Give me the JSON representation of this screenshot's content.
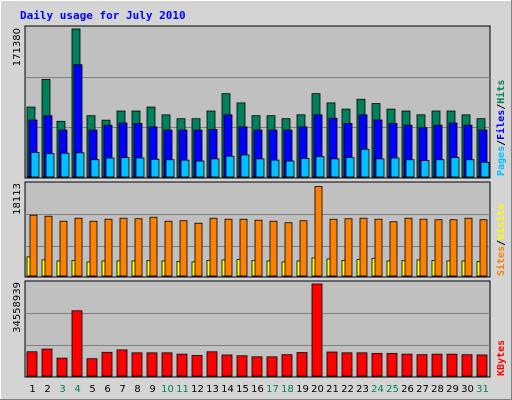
{
  "title": "Daily usage for July 2010",
  "x_labels": [
    "1",
    "2",
    "3",
    "4",
    "5",
    "6",
    "7",
    "8",
    "9",
    "10",
    "11",
    "12",
    "13",
    "14",
    "15",
    "16",
    "17",
    "18",
    "19",
    "20",
    "21",
    "22",
    "23",
    "24",
    "25",
    "26",
    "27",
    "28",
    "29",
    "30",
    "31"
  ],
  "weekend_days": [
    "3",
    "4",
    "10",
    "11",
    "17",
    "18",
    "24",
    "25",
    "31"
  ],
  "colors": {
    "hits": "#00805c",
    "files": "#0000ff",
    "pages": "#00c0ff",
    "visits": "#ffff00",
    "sites": "#ff8000",
    "kbytes": "#ff0000",
    "weekday_label": "#000000",
    "weekend_label": "#00805c",
    "title": "#0000ff",
    "plot_bg": "#c0c0c0",
    "frame_bg": "#d4d4d4"
  },
  "chart_data": [
    {
      "type": "bar",
      "panel": "top",
      "y_max_label": "171380",
      "ylim": [
        0,
        171380
      ],
      "legend": [
        "Pages",
        "/",
        "Files",
        "/",
        "Hits"
      ],
      "series": [
        {
          "name": "Hits",
          "values": [
            81000,
            113000,
            64500,
            171380,
            71000,
            65800,
            76400,
            76400,
            81000,
            72000,
            67500,
            67500,
            76400,
            96500,
            85800,
            71000,
            71000,
            67500,
            72000,
            96500,
            85800,
            78600,
            90000,
            85000,
            78600,
            76400,
            72000,
            76400,
            76400,
            72000,
            67500
          ]
        },
        {
          "name": "Files",
          "values": [
            66000,
            71000,
            54300,
            130000,
            54300,
            60000,
            62500,
            62000,
            58000,
            54300,
            54300,
            54300,
            55000,
            72000,
            58000,
            54300,
            54300,
            54300,
            58000,
            72000,
            68000,
            62000,
            72000,
            66000,
            62000,
            60000,
            57000,
            60000,
            62500,
            60000,
            54300
          ]
        },
        {
          "name": "Pages",
          "values": [
            28500,
            27000,
            27500,
            28000,
            20000,
            22000,
            22500,
            22000,
            20500,
            20000,
            19500,
            18500,
            21000,
            24000,
            25500,
            21000,
            19500,
            18500,
            21500,
            23500,
            21000,
            22500,
            32000,
            21000,
            22000,
            20000,
            19000,
            20000,
            22500,
            20000,
            17000
          ]
        }
      ]
    },
    {
      "type": "bar",
      "panel": "middle",
      "y_max_label": "18113",
      "ylim": [
        0,
        18113
      ],
      "legend": [
        "Sites",
        "/",
        "Visits"
      ],
      "series": [
        {
          "name": "Sites",
          "values": [
            12100,
            11900,
            10900,
            11500,
            10900,
            11300,
            11500,
            11400,
            11700,
            10900,
            11000,
            10500,
            11500,
            11300,
            11300,
            11100,
            10900,
            10600,
            11000,
            17800,
            11300,
            11400,
            11500,
            11300,
            10800,
            11500,
            11300,
            11200,
            11200,
            11500,
            11200
          ]
        },
        {
          "name": "Visits",
          "values": [
            3800,
            3200,
            3000,
            3100,
            2800,
            3000,
            3000,
            3000,
            3100,
            3000,
            2900,
            2800,
            3100,
            3200,
            3300,
            3100,
            3000,
            2800,
            3000,
            3600,
            3400,
            3100,
            3300,
            3500,
            3000,
            3100,
            3200,
            3100,
            3000,
            3000,
            2900
          ]
        }
      ]
    },
    {
      "type": "bar",
      "panel": "bottom",
      "y_max_label": "34558939",
      "ylim": [
        0,
        34558939
      ],
      "legend": [
        "KBytes"
      ],
      "series": [
        {
          "name": "KBytes",
          "values": [
            9100000,
            10100000,
            6700000,
            24500000,
            6500000,
            8900000,
            9800000,
            8700000,
            8700000,
            8700000,
            8200000,
            7700000,
            9100000,
            7900000,
            7600000,
            7200000,
            7200000,
            8000000,
            8800000,
            34558939,
            9000000,
            8700000,
            8700000,
            8500000,
            8500000,
            8200000,
            8000000,
            8200000,
            8200000,
            8000000,
            7900000
          ]
        }
      ]
    }
  ]
}
